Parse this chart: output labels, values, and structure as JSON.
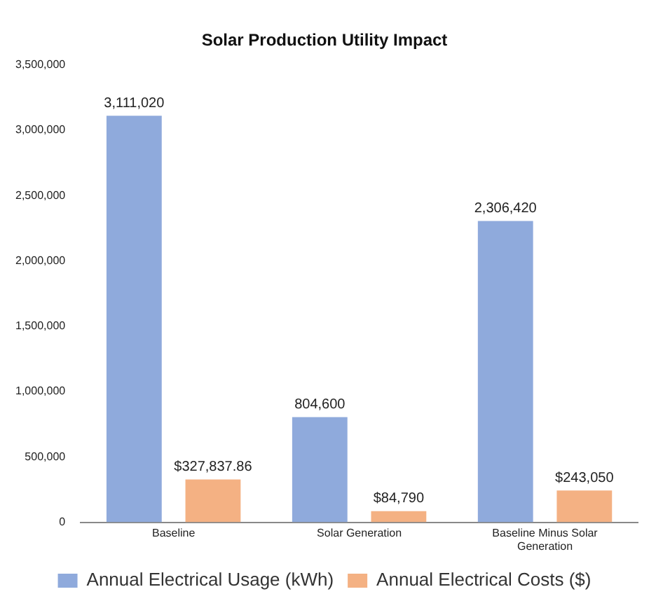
{
  "chart_data": {
    "type": "bar",
    "title": "Solar Production Utility Impact",
    "categories": [
      "Baseline",
      "Solar Generation",
      "Baseline Minus Solar Generation"
    ],
    "series": [
      {
        "name": "Annual Electrical Usage (kWh)",
        "color": "#8faadc",
        "values": [
          3111020,
          804600,
          2306420
        ],
        "value_labels": [
          "3,111,020",
          "804,600",
          "2,306,420"
        ]
      },
      {
        "name": "Annual Electrical Costs ($)",
        "color": "#f4b183",
        "values": [
          327837.86,
          84790,
          243050
        ],
        "value_labels": [
          "$327,837.86",
          "$84,790",
          "$243,050"
        ]
      }
    ],
    "ylim": [
      0,
      3500000
    ],
    "yticks": [
      0,
      {
        "value": 500000,
        "label": "500,000"
      },
      {
        "value": 1000000,
        "label": "1,000,000"
      },
      {
        "value": 1500000,
        "label": "1,500,000"
      },
      {
        "value": 2000000,
        "label": "2,000,000"
      },
      {
        "value": 2500000,
        "label": "2,500,000"
      },
      {
        "value": 3000000,
        "label": "3,000,000"
      },
      {
        "value": 3500000,
        "label": "3,500,000"
      }
    ],
    "grid": false,
    "legend": "bottom"
  }
}
